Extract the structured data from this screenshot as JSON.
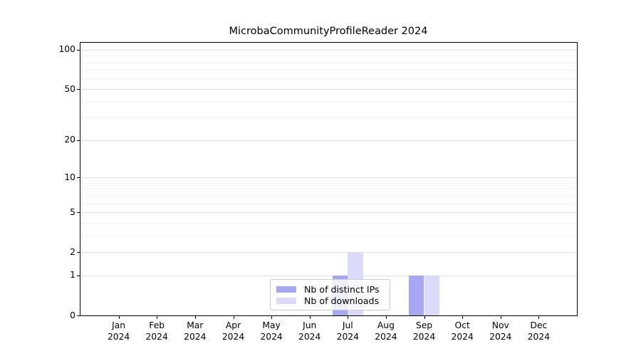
{
  "chart_data": {
    "type": "bar",
    "title": "MicrobaCommunityProfileReader 2024",
    "year": "2024",
    "categories": [
      "Jan",
      "Feb",
      "Mar",
      "Apr",
      "May",
      "Jun",
      "Jul",
      "Aug",
      "Sep",
      "Oct",
      "Nov",
      "Dec"
    ],
    "series": [
      {
        "name": "Nb of distinct IPs",
        "color": "#a8a8f2",
        "values": [
          0,
          0,
          0,
          0,
          0,
          0,
          1,
          0,
          1,
          0,
          0,
          0
        ]
      },
      {
        "name": "Nb of downloads",
        "color": "#dbdbf9",
        "values": [
          0,
          0,
          0,
          0,
          0,
          0,
          2,
          0,
          1,
          0,
          0,
          0
        ]
      }
    ],
    "yscale": "log1p",
    "yticks": [
      100,
      50,
      20,
      10,
      5,
      2,
      1,
      0
    ],
    "y_minor_gridlines": [
      3,
      4,
      6,
      7,
      8,
      9,
      30,
      40,
      60,
      70,
      80,
      90
    ],
    "ylim": [
      0,
      113
    ],
    "grid": "horizontal",
    "legend_position": "lower center",
    "axis_color": "#000000",
    "major_grid_color": "#dedede",
    "minor_grid_color": "#f2f2f2"
  }
}
